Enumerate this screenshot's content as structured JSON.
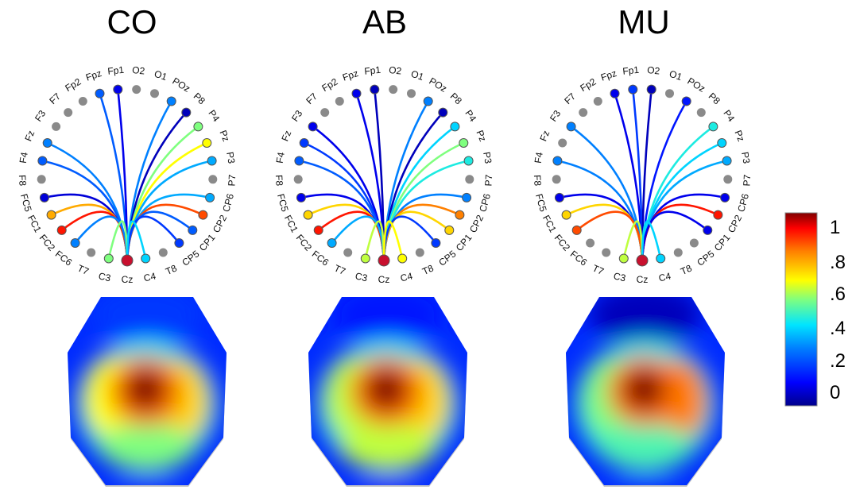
{
  "panels": [
    {
      "id": "co",
      "title": "CO",
      "connections": [
        {
          "e": "Fpz",
          "v": 0.25
        },
        {
          "e": "Fp1",
          "v": 0.1
        },
        {
          "e": "POz",
          "v": 0.3
        },
        {
          "e": "P8",
          "v": 0.05
        },
        {
          "e": "P4",
          "v": 0.55
        },
        {
          "e": "Pz",
          "v": 0.65
        },
        {
          "e": "P3",
          "v": 0.35
        },
        {
          "e": "CP6",
          "v": 0.35
        },
        {
          "e": "CP2",
          "v": 0.85
        },
        {
          "e": "CP1",
          "v": 0.25
        },
        {
          "e": "CP5",
          "v": 0.2
        },
        {
          "e": "Fz",
          "v": 0.3
        },
        {
          "e": "F4",
          "v": 0.25
        },
        {
          "e": "FC5",
          "v": 0.08
        },
        {
          "e": "FC1",
          "v": 0.75
        },
        {
          "e": "FC2",
          "v": 0.9
        },
        {
          "e": "FC6",
          "v": 0.3
        },
        {
          "e": "C3",
          "v": 0.55
        },
        {
          "e": "C4",
          "v": 0.4
        }
      ]
    },
    {
      "id": "ab",
      "title": "AB",
      "connections": [
        {
          "e": "Fpz",
          "v": 0.1
        },
        {
          "e": "Fp1",
          "v": 0.05
        },
        {
          "e": "POz",
          "v": 0.3
        },
        {
          "e": "P8",
          "v": 0.05
        },
        {
          "e": "P4",
          "v": 0.4
        },
        {
          "e": "Pz",
          "v": 0.55
        },
        {
          "e": "P3",
          "v": 0.45
        },
        {
          "e": "CP6",
          "v": 0.3
        },
        {
          "e": "CP2",
          "v": 0.8
        },
        {
          "e": "CP1",
          "v": 0.7
        },
        {
          "e": "CP5",
          "v": 0.2
        },
        {
          "e": "F3",
          "v": 0.1
        },
        {
          "e": "Fz",
          "v": 0.2
        },
        {
          "e": "F4",
          "v": 0.25
        },
        {
          "e": "FC5",
          "v": 0.1
        },
        {
          "e": "FC1",
          "v": 0.7
        },
        {
          "e": "FC2",
          "v": 0.9
        },
        {
          "e": "FC6",
          "v": 0.35
        },
        {
          "e": "C3",
          "v": 0.6
        },
        {
          "e": "C4",
          "v": 0.65
        }
      ]
    },
    {
      "id": "mu",
      "title": "MU",
      "connections": [
        {
          "e": "Fpz",
          "v": 0.1
        },
        {
          "e": "Fp1",
          "v": 0.2
        },
        {
          "e": "O2",
          "v": 0.05
        },
        {
          "e": "POz",
          "v": 0.15
        },
        {
          "e": "P4",
          "v": 0.45
        },
        {
          "e": "Pz",
          "v": 0.4
        },
        {
          "e": "P3",
          "v": 0.35
        },
        {
          "e": "CP6",
          "v": 0.1
        },
        {
          "e": "CP2",
          "v": 0.9
        },
        {
          "e": "CP1",
          "v": 0.1
        },
        {
          "e": "F3",
          "v": 0.3
        },
        {
          "e": "F4",
          "v": 0.3
        },
        {
          "e": "FC5",
          "v": 0.1
        },
        {
          "e": "FC1",
          "v": 0.7
        },
        {
          "e": "FC2",
          "v": 0.85
        },
        {
          "e": "C3",
          "v": 0.6
        },
        {
          "e": "C4",
          "v": 0.4
        }
      ]
    }
  ],
  "electrodes": [
    "Cz",
    "C3",
    "T7",
    "FC6",
    "FC2",
    "FC1",
    "FC5",
    "F8",
    "F4",
    "Fz",
    "F3",
    "F7",
    "Fp2",
    "Fpz",
    "Fp1",
    "O2",
    "O1",
    "POz",
    "P8",
    "P4",
    "Pz",
    "P3",
    "P7",
    "CP6",
    "CP2",
    "CP1",
    "CP5",
    "T8",
    "C4"
  ],
  "scalp_maps": [
    {
      "id": "co",
      "peak": 1.0,
      "frontal": 0.2,
      "posterior": 0.3,
      "right_lobe": 0.7,
      "left_lobe": 0.65
    },
    {
      "id": "ab",
      "peak": 1.0,
      "frontal": 0.15,
      "posterior": 0.35,
      "right_lobe": 0.7,
      "left_lobe": 0.6
    },
    {
      "id": "mu",
      "peak": 1.0,
      "frontal": 0.05,
      "posterior": 0.25,
      "right_lobe": 0.8,
      "left_lobe": 0.55
    }
  ],
  "colorbar": {
    "ticks": [
      "1",
      ".8",
      ".6",
      ".4",
      ".2",
      "0"
    ],
    "colors": [
      "#00008b",
      "#0000ff",
      "#0080ff",
      "#00e5ff",
      "#7fff7f",
      "#ffff00",
      "#ff8000",
      "#ff0000",
      "#800000"
    ]
  }
}
